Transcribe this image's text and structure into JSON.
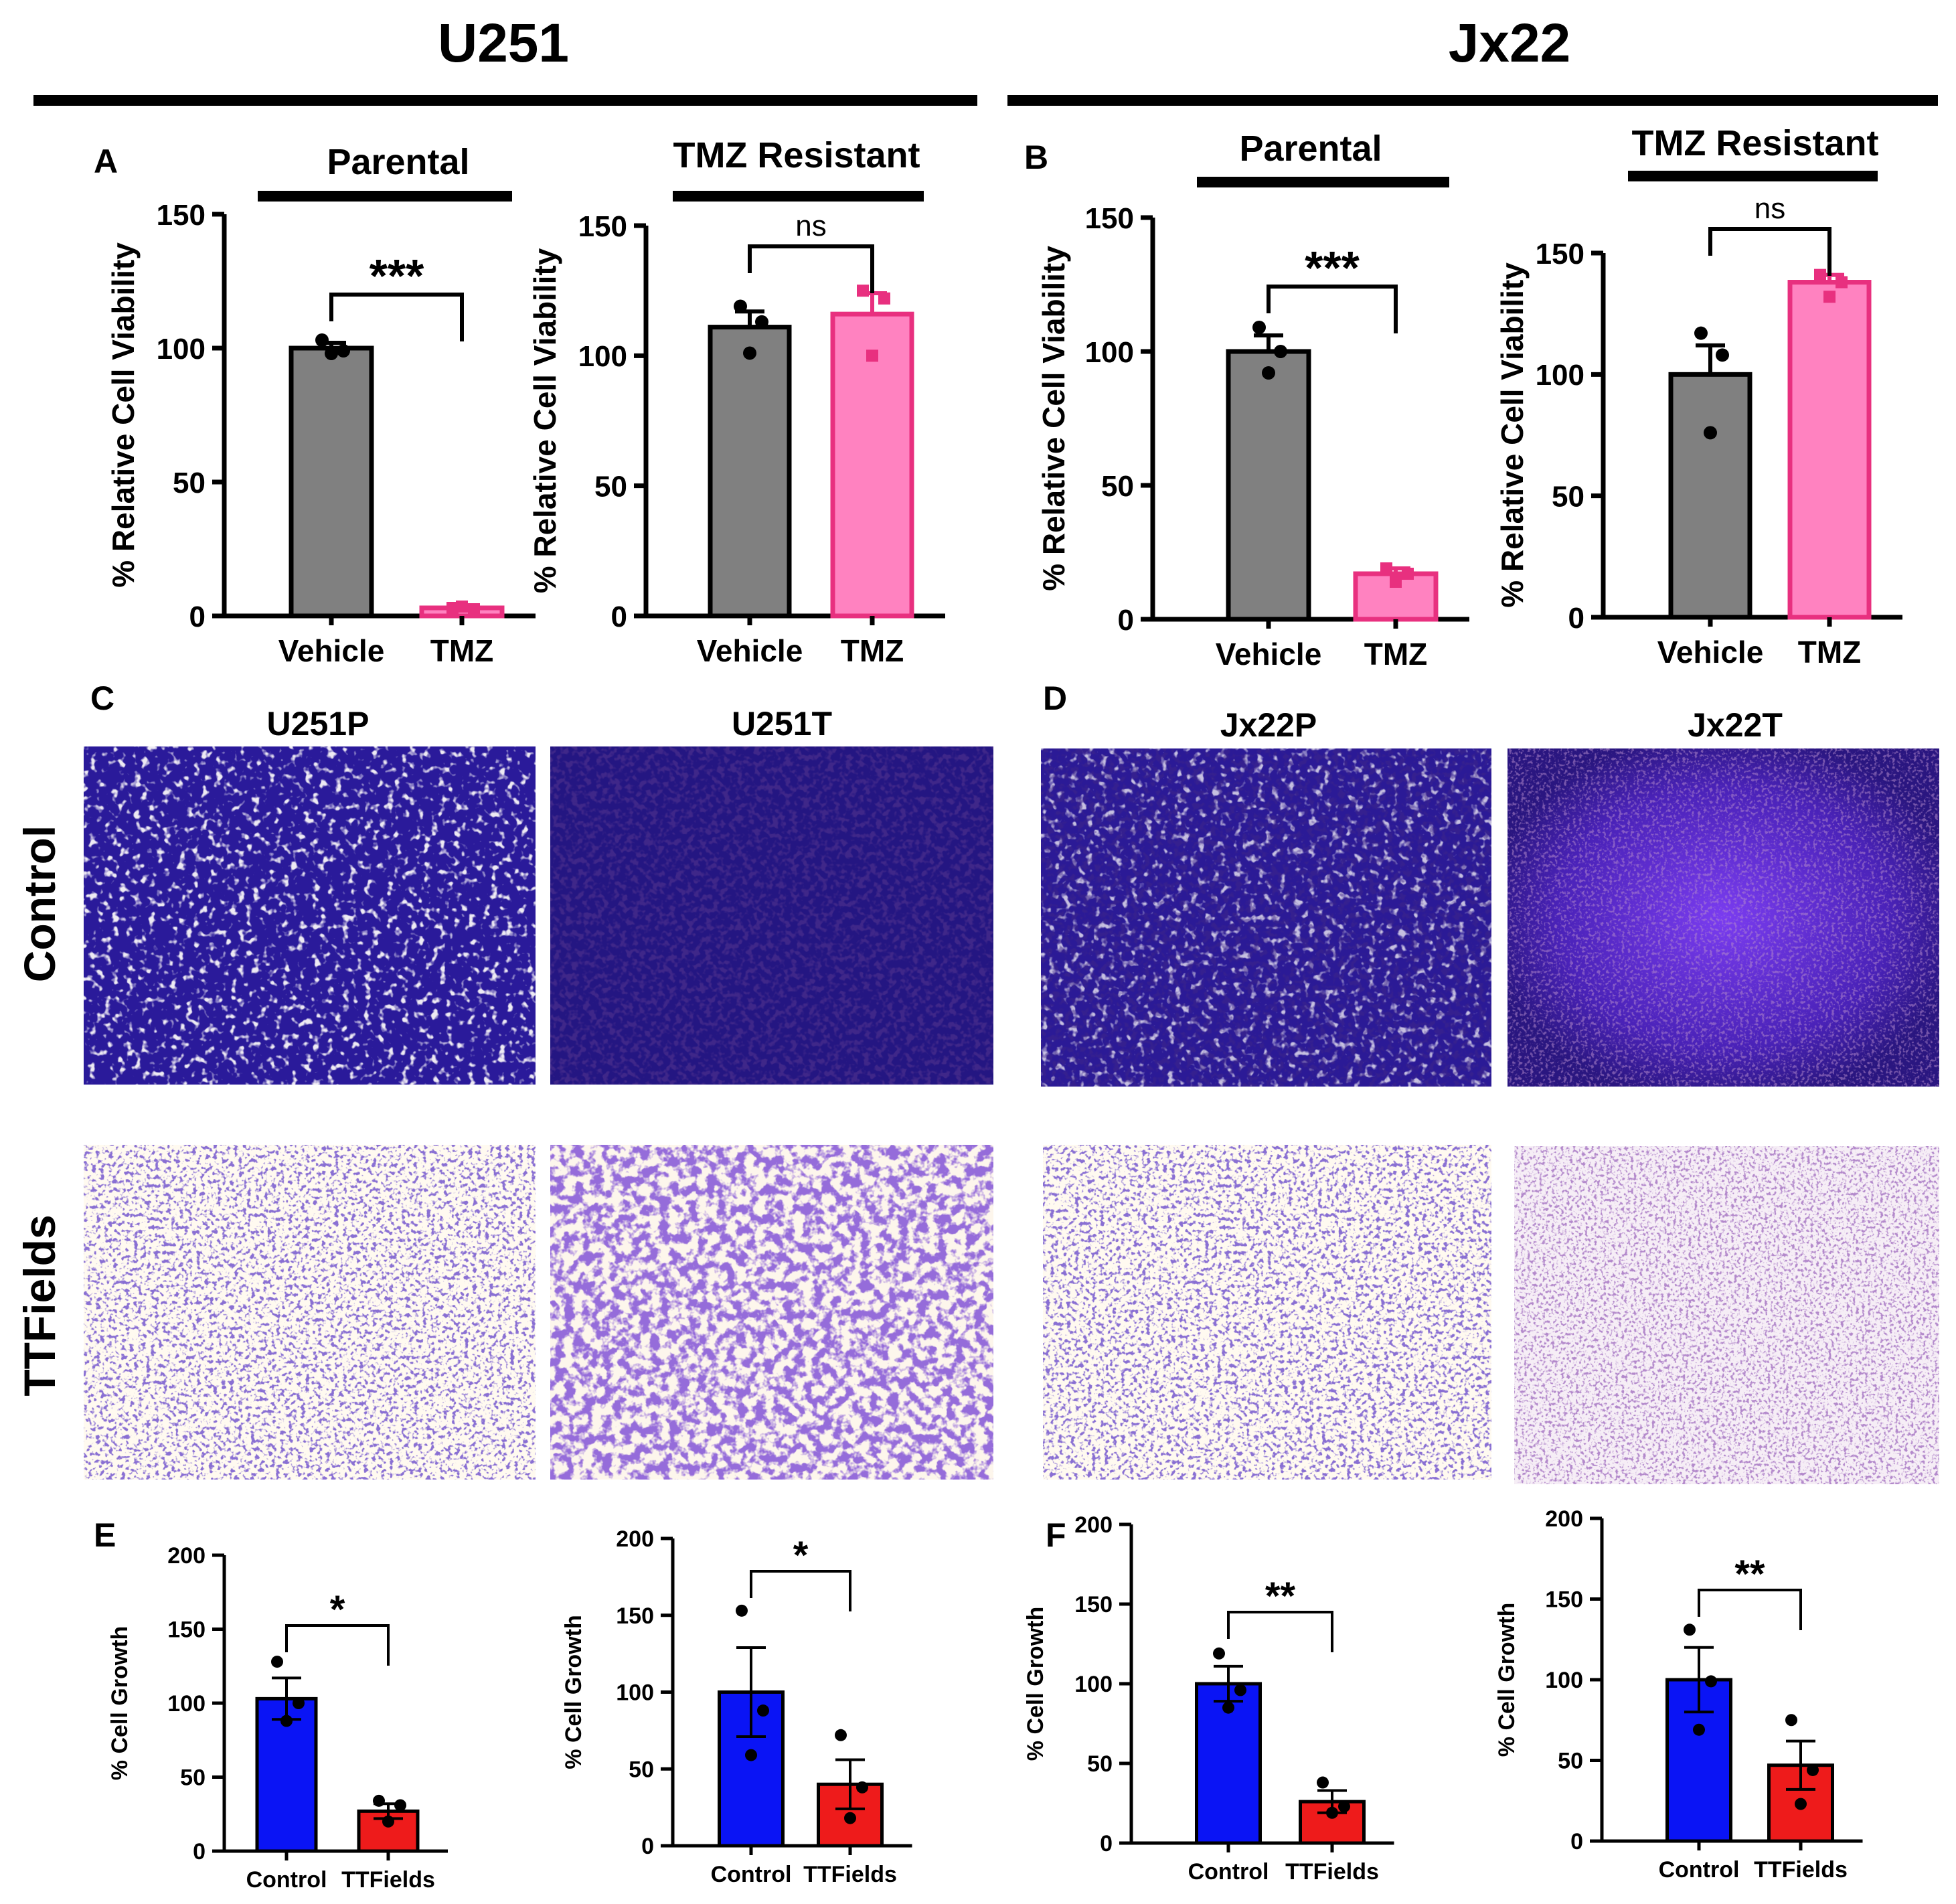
{
  "figure": {
    "col_titles": [
      "U251",
      "Jx22"
    ],
    "panel_letters": [
      "A",
      "B",
      "C",
      "D",
      "E",
      "F"
    ],
    "row_labels": [
      "Control",
      "TTFields"
    ],
    "image_titles": [
      "U251P",
      "U251T",
      "Jx22P",
      "Jx22T"
    ]
  },
  "colors": {
    "vehicle": "#808080",
    "tmz": "#ff82c0",
    "tmz_edge": "#e8307f",
    "control": "#0a14f5",
    "ttfields": "#ee1b1b",
    "stain_dark": "#1f1470",
    "stain_mid": "#3d28c8",
    "stain_light": "#fff9ec"
  },
  "chart_data": [
    {
      "id": "A1",
      "type": "bar",
      "group_title": "Parental",
      "ylabel": "% Relative Cell Viability",
      "ylim": [
        0,
        150
      ],
      "yticks": [
        0,
        50,
        100,
        150
      ],
      "categories": [
        "Vehicle",
        "TMZ"
      ],
      "values": [
        100,
        3
      ],
      "errors": [
        2,
        0.5
      ],
      "points": [
        [
          103,
          98,
          99
        ],
        [
          3,
          3.5,
          2.5
        ]
      ],
      "significance": "***"
    },
    {
      "id": "A2",
      "type": "bar",
      "group_title": "TMZ Resistant",
      "ylabel": "% Relative Cell Viability",
      "ylim": [
        0,
        150
      ],
      "yticks": [
        0,
        50,
        100,
        150
      ],
      "categories": [
        "Vehicle",
        "TMZ"
      ],
      "values": [
        111,
        116
      ],
      "errors": [
        6,
        8
      ],
      "points": [
        [
          119,
          101,
          113
        ],
        [
          125,
          100,
          122
        ]
      ],
      "significance": "ns"
    },
    {
      "id": "B1",
      "type": "bar",
      "group_title": "Parental",
      "ylabel": "% Relative Cell Viability",
      "ylim": [
        0,
        150
      ],
      "yticks": [
        0,
        50,
        100,
        150
      ],
      "categories": [
        "Vehicle",
        "TMZ"
      ],
      "values": [
        100,
        17
      ],
      "errors": [
        6,
        2
      ],
      "points": [
        [
          109,
          92,
          100
        ],
        [
          19,
          14,
          17
        ]
      ],
      "significance": "***"
    },
    {
      "id": "B2",
      "type": "bar",
      "group_title": "TMZ Resistant",
      "ylabel": "% Relative Cell Viability",
      "ylim": [
        0,
        150
      ],
      "yticks": [
        0,
        50,
        100,
        150
      ],
      "categories": [
        "Vehicle",
        "TMZ"
      ],
      "values": [
        100,
        138
      ],
      "errors": [
        12,
        3
      ],
      "points": [
        [
          117,
          76,
          108
        ],
        [
          141,
          132,
          138
        ]
      ],
      "significance": "ns"
    },
    {
      "id": "E1",
      "type": "bar",
      "ylabel": "% Cell Growth",
      "ylim": [
        0,
        200
      ],
      "yticks": [
        0,
        50,
        100,
        150,
        200
      ],
      "categories": [
        "Control",
        "TTFields"
      ],
      "values": [
        103,
        27
      ],
      "errors": [
        14,
        5
      ],
      "points": [
        [
          128,
          88,
          100
        ],
        [
          34,
          20,
          31
        ]
      ],
      "significance": "*"
    },
    {
      "id": "E2",
      "type": "bar",
      "ylabel": "% Cell Growth",
      "ylim": [
        0,
        200
      ],
      "yticks": [
        0,
        50,
        100,
        150,
        200
      ],
      "categories": [
        "Control",
        "TTFields"
      ],
      "values": [
        100,
        40
      ],
      "errors": [
        29,
        16
      ],
      "points": [
        [
          153,
          59,
          88
        ],
        [
          72,
          18,
          38
        ]
      ],
      "significance": "*"
    },
    {
      "id": "F1",
      "type": "bar",
      "ylabel": "% Cell Growth",
      "ylim": [
        0,
        200
      ],
      "yticks": [
        0,
        50,
        100,
        150,
        200
      ],
      "categories": [
        "Control",
        "TTFields"
      ],
      "values": [
        100,
        26
      ],
      "errors": [
        11,
        7
      ],
      "points": [
        [
          119,
          85,
          96
        ],
        [
          38,
          19,
          23
        ]
      ],
      "significance": "**"
    },
    {
      "id": "F2",
      "type": "bar",
      "ylabel": "% Cell Growth",
      "ylim": [
        0,
        200
      ],
      "yticks": [
        0,
        50,
        100,
        150,
        200
      ],
      "categories": [
        "Control",
        "TTFields"
      ],
      "values": [
        100,
        47
      ],
      "errors": [
        20,
        15
      ],
      "points": [
        [
          131,
          69,
          99
        ],
        [
          75,
          23,
          44
        ]
      ],
      "significance": "**"
    }
  ]
}
